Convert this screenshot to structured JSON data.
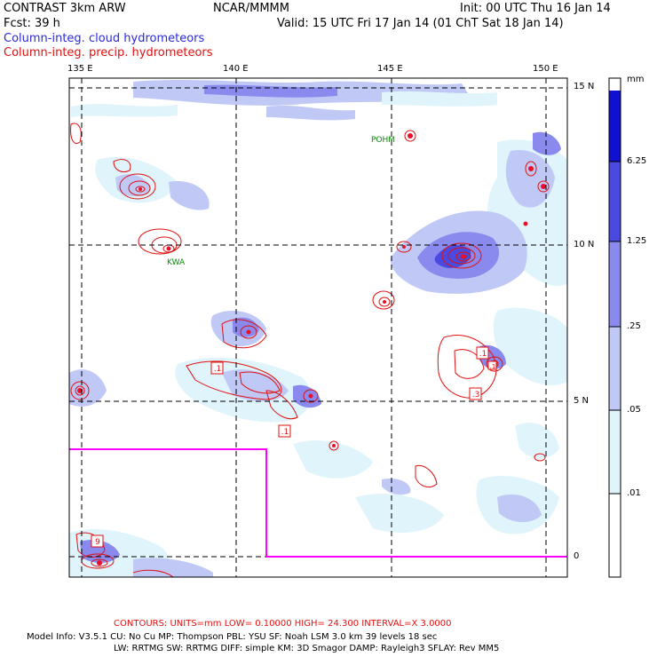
{
  "header": {
    "model": "CONTRAST  3km ARW",
    "center": "NCAR/MMMM",
    "init": "Init: 00 UTC Thu 16 Jan 14",
    "fcst": "Fcst:   39 h",
    "valid": "Valid: 15 UTC Fri 17 Jan 14 (01 ChT Sat 18 Jan 14)",
    "field_fill": "Column-integ. cloud hydrometeors",
    "field_contour": "Column-integ. precip. hydrometeors"
  },
  "map": {
    "lon_ticks": [
      "135 E",
      "140 E",
      "145 E",
      "150 E"
    ],
    "lat_ticks": [
      "15 N",
      "10 N",
      "5 N",
      "0"
    ],
    "stations": [
      "POHM",
      "KWA"
    ]
  },
  "colorbar": {
    "unit": "mm",
    "levels": [
      "6.25",
      "1.25",
      ".25",
      ".05",
      ".01"
    ],
    "colors": [
      "#1010d0",
      "#4a4ae0",
      "#8a8aee",
      "#c0c8f6",
      "#dff4fb",
      "#ffffff"
    ]
  },
  "footer": {
    "contours": "CONTOURS:  UNITS=mm  LOW= 0.10000      HIGH=  24.300      INTERVAL=X  3.0000",
    "model_info_1": "Model Info: V3.5.1    CU: No Cu     MP: Thompson     PBL: YSU      SF: Noah LSM     3.0 km   39 levels    18 sec",
    "model_info_2": "LW: RRTMG    SW: RRTMG   DIFF: simple KM: 3D Smagor DAMP: Rayleigh3  SFLAY: Rev MM5"
  },
  "contour_labels": [
    ".1",
    ".1",
    ".1",
    ".3",
    ".1",
    "9"
  ]
}
